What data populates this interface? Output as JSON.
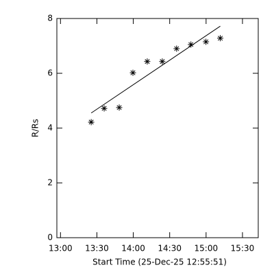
{
  "chart_data": {
    "type": "scatter",
    "x_label": "Start Time (25-Dec-25 12:55:51)",
    "y_label": "R/Rs",
    "xlim": [
      777,
      943
    ],
    "xticks": [
      {
        "value": 780,
        "label": "13:00"
      },
      {
        "value": 810,
        "label": "13:30"
      },
      {
        "value": 840,
        "label": "14:00"
      },
      {
        "value": 870,
        "label": "14:30"
      },
      {
        "value": 900,
        "label": "15:00"
      },
      {
        "value": 930,
        "label": "15:30"
      }
    ],
    "ylim": [
      0,
      8
    ],
    "yticks": [
      0,
      2,
      4,
      6,
      8
    ],
    "color": "#000000",
    "x": [
      805.3,
      816.0,
      828.4,
      839.7,
      851.5,
      863.9,
      875.7,
      887.5,
      899.9,
      911.7
    ],
    "values": [
      4.22,
      4.72,
      4.75,
      6.02,
      6.43,
      6.43,
      6.9,
      7.05,
      7.15,
      7.28
    ],
    "fit": {
      "x": [
        805.3,
        911.7
      ],
      "values": [
        4.55,
        7.72
      ]
    }
  }
}
